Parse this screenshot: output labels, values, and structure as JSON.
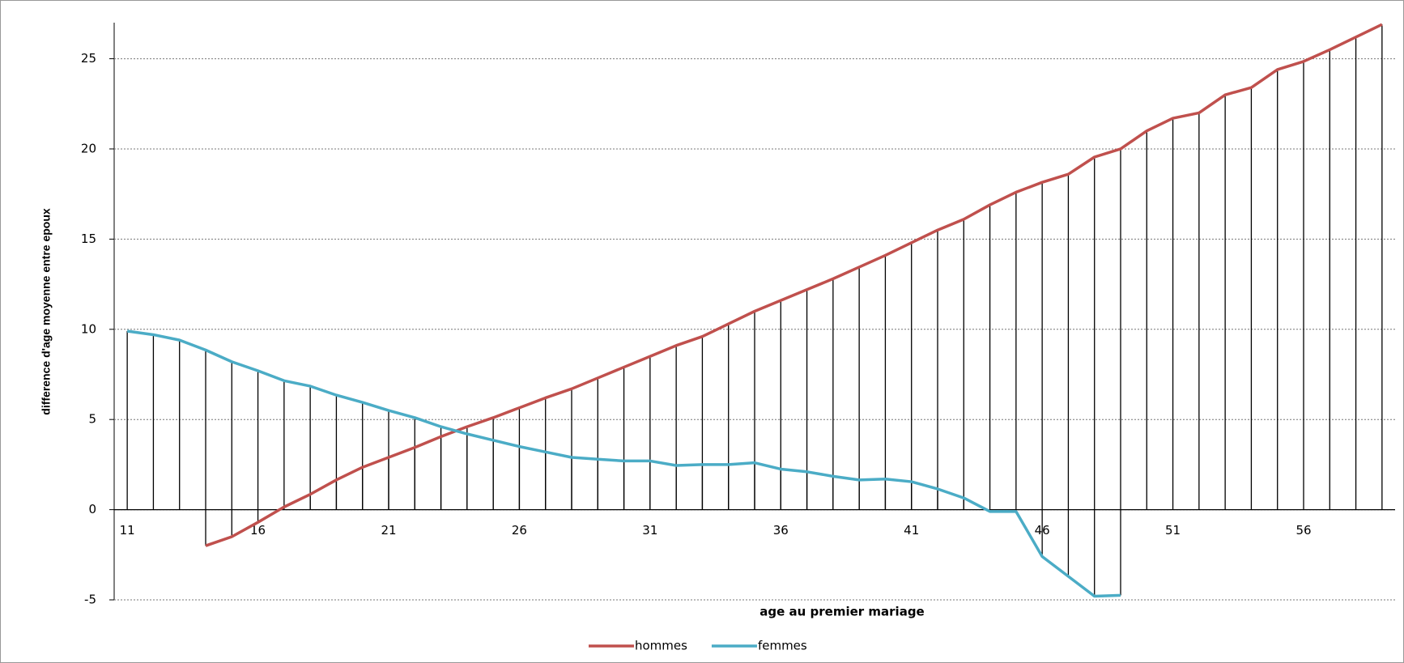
{
  "chart_data": {
    "type": "line",
    "x_label": "age au premier mariage",
    "y_label": "difference d'age moyenne entre epoux",
    "categories": [
      11,
      null,
      null,
      null,
      null,
      16,
      null,
      null,
      null,
      null,
      21,
      null,
      null,
      null,
      null,
      26,
      null,
      null,
      null,
      null,
      31,
      null,
      null,
      null,
      null,
      36,
      null,
      null,
      null,
      null,
      41,
      null,
      null,
      null,
      null,
      46,
      null,
      null,
      null,
      null,
      51,
      null,
      null,
      null,
      null,
      56,
      null,
      null,
      null
    ],
    "series": [
      {
        "name": "hommes",
        "color": "#c0504d",
        "values": [
          null,
          null,
          null,
          -2.0,
          -1.5,
          -0.7,
          0.15,
          0.85,
          1.65,
          2.35,
          2.9,
          3.45,
          4.05,
          4.6,
          5.1,
          5.65,
          6.2,
          6.7,
          7.3,
          7.9,
          8.5,
          9.1,
          9.6,
          10.3,
          11.0,
          11.6,
          12.2,
          12.8,
          13.45,
          14.1,
          14.8,
          15.5,
          16.1,
          16.9,
          17.6,
          18.15,
          18.6,
          19.55,
          20.0,
          21.0,
          21.7,
          22.0,
          23.0,
          23.4,
          24.4,
          24.85,
          25.5,
          26.2,
          26.9
        ]
      },
      {
        "name": "femmes",
        "color": "#4bacc6",
        "values": [
          9.9,
          9.7,
          9.4,
          8.85,
          8.2,
          7.7,
          7.15,
          6.85,
          6.35,
          5.95,
          5.5,
          5.1,
          4.6,
          4.2,
          3.85,
          3.5,
          3.2,
          2.9,
          2.8,
          2.7,
          2.7,
          2.45,
          2.5,
          2.5,
          2.6,
          2.25,
          2.1,
          1.85,
          1.65,
          1.7,
          1.55,
          1.15,
          0.65,
          -0.1,
          -0.1,
          -2.6,
          -3.7,
          -4.8,
          -4.75,
          null,
          null,
          null,
          null,
          null,
          null,
          null,
          null,
          null,
          null
        ]
      }
    ],
    "ylim": [
      -5,
      27
    ],
    "yticks": [
      -5,
      0,
      5,
      10,
      15,
      20,
      25
    ],
    "grid": true,
    "drop_lines": true,
    "legend": "bottom"
  }
}
